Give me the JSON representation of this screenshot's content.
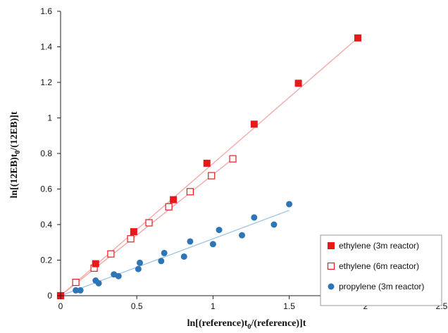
{
  "chart_data": {
    "type": "scatter",
    "xlabel": {
      "base": "ln[(reference)t",
      "sub": "0",
      "rest": "/(reference)]t"
    },
    "ylabel": {
      "base": "ln[(12EB)t",
      "sub": "0",
      "rest": "/(12EB)]t"
    },
    "xlim": [
      0,
      2.5
    ],
    "ylim": [
      0,
      1.6
    ],
    "x_ticks": [
      "0",
      "0.5",
      "1",
      "1.5",
      "2",
      "2.5"
    ],
    "y_ticks": [
      "0",
      "0.2",
      "0.4",
      "0.6",
      "0.8",
      "1",
      "1.2",
      "1.4",
      "1.6"
    ],
    "grid": false,
    "legend_position": "bottom-right",
    "series": [
      {
        "name": "ethylene (3m reactor)",
        "marker": "filled-square",
        "color": "#e8191b",
        "points": [
          [
            0,
            0
          ],
          [
            0.23,
            0.18
          ],
          [
            0.48,
            0.36
          ],
          [
            0.74,
            0.54
          ],
          [
            0.96,
            0.745
          ],
          [
            1.27,
            0.965
          ],
          [
            1.56,
            1.195
          ],
          [
            1.95,
            1.45
          ]
        ],
        "trendline": {
          "x": [
            0,
            1.95
          ],
          "y": [
            0,
            1.45
          ],
          "color": "#f4a3a3"
        }
      },
      {
        "name": "ethylene (6m reactor)",
        "marker": "open-square",
        "color": "#e8191b",
        "points": [
          [
            0,
            0
          ],
          [
            0.1,
            0.075
          ],
          [
            0.22,
            0.155
          ],
          [
            0.33,
            0.235
          ],
          [
            0.46,
            0.32
          ],
          [
            0.58,
            0.41
          ],
          [
            0.71,
            0.5
          ],
          [
            0.85,
            0.585
          ],
          [
            0.99,
            0.675
          ],
          [
            1.13,
            0.77
          ]
        ],
        "trendline": {
          "x": [
            0,
            1.13
          ],
          "y": [
            0,
            0.77
          ],
          "color": "#f4a3a3"
        }
      },
      {
        "name": "propylene (3m reactor)",
        "marker": "filled-circle",
        "color": "#2e75b6",
        "points": [
          [
            0,
            0
          ],
          [
            0.1,
            0.03
          ],
          [
            0.13,
            0.03
          ],
          [
            0.23,
            0.085
          ],
          [
            0.25,
            0.07
          ],
          [
            0.35,
            0.12
          ],
          [
            0.38,
            0.11
          ],
          [
            0.51,
            0.15
          ],
          [
            0.52,
            0.185
          ],
          [
            0.66,
            0.195
          ],
          [
            0.68,
            0.24
          ],
          [
            0.81,
            0.22
          ],
          [
            0.85,
            0.305
          ],
          [
            1.0,
            0.29
          ],
          [
            1.04,
            0.37
          ],
          [
            1.19,
            0.34
          ],
          [
            1.27,
            0.44
          ],
          [
            1.4,
            0.4
          ],
          [
            1.5,
            0.515
          ]
        ],
        "trendline": {
          "x": [
            0,
            1.5
          ],
          "y": [
            0,
            0.48
          ],
          "color": "#9dc3e6"
        }
      }
    ]
  }
}
